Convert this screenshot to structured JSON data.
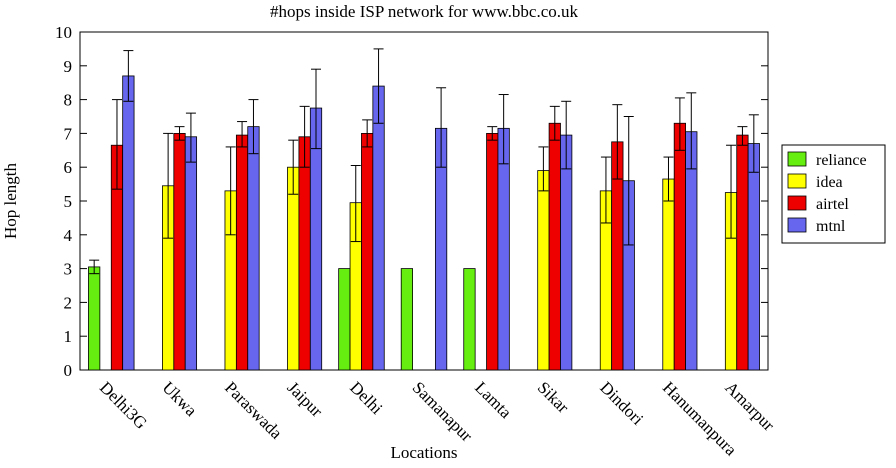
{
  "chart_data": {
    "type": "bar",
    "title": "#hops inside ISP network for www.bbc.co.uk",
    "xlabel": "Locations",
    "ylabel": "Hop length",
    "ylim": [
      0,
      10
    ],
    "yticks": [
      0,
      1,
      2,
      3,
      4,
      5,
      6,
      7,
      8,
      9,
      10
    ],
    "grid": false,
    "legend_position": "right",
    "categories": [
      "Delhi3G",
      "Ukwa",
      "Paraswada",
      "Jaipur",
      "Delhi",
      "Samanapur",
      "Lamta",
      "Sikar",
      "Dindori",
      "Hanumanpura",
      "Amarpur"
    ],
    "series": [
      {
        "name": "reliance",
        "color": "#66ee11",
        "values": [
          3.05,
          null,
          null,
          null,
          3.0,
          3.0,
          3.0,
          null,
          null,
          null,
          null
        ],
        "err_low": [
          2.85,
          null,
          null,
          null,
          null,
          null,
          null,
          null,
          null,
          null,
          null
        ],
        "err_high": [
          3.25,
          null,
          null,
          null,
          null,
          null,
          null,
          null,
          null,
          null,
          null
        ]
      },
      {
        "name": "idea",
        "color": "#ffff00",
        "values": [
          null,
          5.45,
          5.3,
          6.0,
          4.95,
          null,
          null,
          5.9,
          5.3,
          5.65,
          5.25
        ],
        "err_low": [
          null,
          3.9,
          4.0,
          5.2,
          3.8,
          null,
          null,
          5.3,
          4.35,
          5.0,
          3.9
        ],
        "err_high": [
          null,
          7.0,
          6.6,
          6.8,
          6.05,
          null,
          null,
          6.6,
          6.3,
          6.3,
          6.65
        ]
      },
      {
        "name": "airtel",
        "color": "#ee0000",
        "values": [
          6.65,
          7.0,
          6.95,
          6.9,
          7.0,
          null,
          7.0,
          7.3,
          6.75,
          7.3,
          6.95
        ],
        "err_low": [
          5.35,
          6.8,
          6.6,
          6.0,
          6.6,
          null,
          6.8,
          6.8,
          5.65,
          6.5,
          6.65
        ],
        "err_high": [
          8.0,
          7.2,
          7.35,
          7.8,
          7.4,
          null,
          7.2,
          7.8,
          7.85,
          8.05,
          7.2
        ]
      },
      {
        "name": "mtnl",
        "color": "#6666ee",
        "values": [
          8.7,
          6.9,
          7.2,
          7.75,
          8.4,
          7.15,
          7.15,
          6.95,
          5.6,
          7.05,
          6.7
        ],
        "err_low": [
          7.95,
          6.15,
          6.4,
          6.55,
          7.3,
          6.0,
          6.1,
          5.95,
          3.7,
          5.95,
          5.85
        ],
        "err_high": [
          9.45,
          7.6,
          8.0,
          8.9,
          9.5,
          8.35,
          8.15,
          7.95,
          7.5,
          8.2,
          7.55
        ]
      }
    ]
  }
}
